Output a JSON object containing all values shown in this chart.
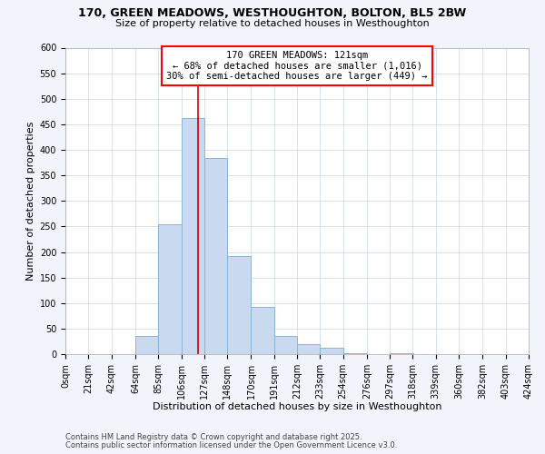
{
  "title_line1": "170, GREEN MEADOWS, WESTHOUGHTON, BOLTON, BL5 2BW",
  "title_line2": "Size of property relative to detached houses in Westhoughton",
  "xlabel": "Distribution of detached houses by size in Westhoughton",
  "ylabel": "Number of detached properties",
  "bin_edges": [
    0,
    21,
    42,
    64,
    85,
    106,
    127,
    148,
    170,
    191,
    212,
    233,
    254,
    276,
    297,
    318,
    339,
    360,
    382,
    403,
    424
  ],
  "bin_counts": [
    0,
    0,
    0,
    35,
    254,
    463,
    384,
    192,
    93,
    35,
    20,
    12,
    2,
    0,
    1,
    0,
    0,
    0,
    0,
    0
  ],
  "bar_facecolor": "#c9daf0",
  "bar_edgecolor": "#8ab4d8",
  "vline_x": 121,
  "vline_color": "#cc0000",
  "ylim": [
    0,
    600
  ],
  "ytick_step": 50,
  "xtick_labels": [
    "0sqm",
    "21sqm",
    "42sqm",
    "64sqm",
    "85sqm",
    "106sqm",
    "127sqm",
    "148sqm",
    "170sqm",
    "191sqm",
    "212sqm",
    "233sqm",
    "254sqm",
    "276sqm",
    "297sqm",
    "318sqm",
    "339sqm",
    "360sqm",
    "382sqm",
    "403sqm",
    "424sqm"
  ],
  "annotation_title": "170 GREEN MEADOWS: 121sqm",
  "annotation_line1": "← 68% of detached houses are smaller (1,016)",
  "annotation_line2": "30% of semi-detached houses are larger (449) →",
  "footnote1": "Contains HM Land Registry data © Crown copyright and database right 2025.",
  "footnote2": "Contains public sector information licensed under the Open Government Licence v3.0.",
  "fig_bg_color": "#f2f4fb",
  "plot_bg_color": "#ffffff",
  "grid_color": "#c8d4e8",
  "title_fontsize": 9,
  "subtitle_fontsize": 8,
  "annotation_fontsize": 7.5,
  "axis_label_fontsize": 8,
  "tick_fontsize": 7,
  "footnote_fontsize": 6
}
